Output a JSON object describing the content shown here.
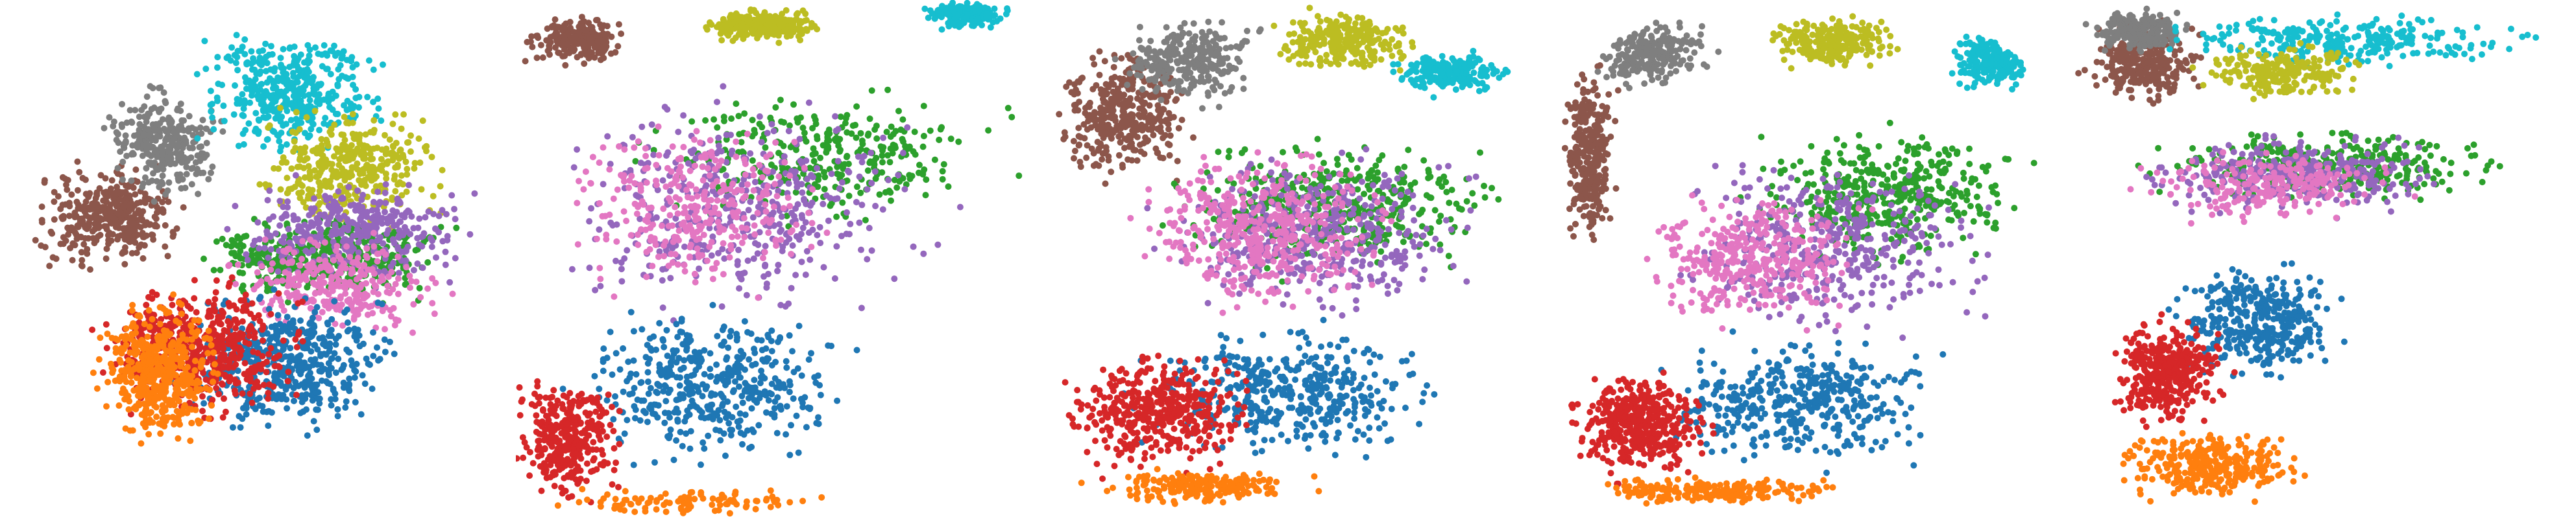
{
  "colors": {
    "blue": "#1f77b4",
    "orange": "#ff7f0e",
    "green": "#2ca02c",
    "red": "#d62728",
    "purple": "#9467bd",
    "brown": "#8c564b",
    "pink": "#e377c2",
    "gray": "#7f7f7f",
    "olive": "#bcbd22",
    "cyan": "#17becf"
  },
  "chart_data": [
    {
      "type": "scatter",
      "title": "",
      "xlabel": "",
      "ylabel": "",
      "axes_visible": false,
      "grid": false,
      "legend": "none",
      "shape": "disc",
      "series": [
        {
          "color": "#8c564b",
          "count": 380,
          "region": {
            "cx": 0.22,
            "cy": 0.42,
            "rx": 0.18,
            "ry": 0.12
          }
        },
        {
          "color": "#7f7f7f",
          "count": 300,
          "region": {
            "cx": 0.33,
            "cy": 0.28,
            "rx": 0.14,
            "ry": 0.13
          }
        },
        {
          "color": "#17becf",
          "count": 420,
          "region": {
            "cx": 0.58,
            "cy": 0.18,
            "rx": 0.22,
            "ry": 0.14
          }
        },
        {
          "color": "#bcbd22",
          "count": 360,
          "region": {
            "cx": 0.7,
            "cy": 0.32,
            "rx": 0.22,
            "ry": 0.14
          }
        },
        {
          "color": "#2ca02c",
          "count": 420,
          "region": {
            "cx": 0.65,
            "cy": 0.5,
            "rx": 0.3,
            "ry": 0.1
          }
        },
        {
          "color": "#9467bd",
          "count": 380,
          "region": {
            "cx": 0.7,
            "cy": 0.45,
            "rx": 0.28,
            "ry": 0.12
          }
        },
        {
          "color": "#e377c2",
          "count": 300,
          "region": {
            "cx": 0.68,
            "cy": 0.55,
            "rx": 0.26,
            "ry": 0.12
          }
        },
        {
          "color": "#1f77b4",
          "count": 480,
          "region": {
            "cx": 0.58,
            "cy": 0.7,
            "rx": 0.26,
            "ry": 0.16
          }
        },
        {
          "color": "#d62728",
          "count": 520,
          "region": {
            "cx": 0.4,
            "cy": 0.68,
            "rx": 0.25,
            "ry": 0.16
          }
        },
        {
          "color": "#ff7f0e",
          "count": 480,
          "region": {
            "cx": 0.32,
            "cy": 0.72,
            "rx": 0.14,
            "ry": 0.16
          }
        }
      ]
    },
    {
      "type": "scatter",
      "title": "",
      "xlabel": "",
      "ylabel": "",
      "axes_visible": false,
      "grid": false,
      "legend": "none",
      "shape": "rect",
      "series": [
        {
          "color": "#8c564b",
          "count": 200,
          "region": {
            "cx": 0.12,
            "cy": 0.08,
            "rx": 0.12,
            "ry": 0.06
          }
        },
        {
          "color": "#bcbd22",
          "count": 260,
          "region": {
            "cx": 0.48,
            "cy": 0.05,
            "rx": 0.14,
            "ry": 0.04
          }
        },
        {
          "color": "#17becf",
          "count": 160,
          "region": {
            "cx": 0.88,
            "cy": 0.03,
            "rx": 0.1,
            "ry": 0.03
          }
        },
        {
          "color": "#2ca02c",
          "count": 320,
          "region": {
            "cx": 0.6,
            "cy": 0.3,
            "rx": 0.4,
            "ry": 0.16
          }
        },
        {
          "color": "#9467bd",
          "count": 420,
          "region": {
            "cx": 0.45,
            "cy": 0.4,
            "rx": 0.45,
            "ry": 0.25
          }
        },
        {
          "color": "#e377c2",
          "count": 320,
          "region": {
            "cx": 0.35,
            "cy": 0.4,
            "rx": 0.3,
            "ry": 0.2
          }
        },
        {
          "color": "#1f77b4",
          "count": 440,
          "region": {
            "cx": 0.38,
            "cy": 0.75,
            "rx": 0.32,
            "ry": 0.18
          }
        },
        {
          "color": "#d62728",
          "count": 340,
          "region": {
            "cx": 0.1,
            "cy": 0.85,
            "rx": 0.12,
            "ry": 0.14
          }
        },
        {
          "color": "#ff7f0e",
          "count": 100,
          "region": {
            "cx": 0.35,
            "cy": 0.97,
            "rx": 0.35,
            "ry": 0.03
          }
        }
      ]
    },
    {
      "type": "scatter",
      "title": "",
      "xlabel": "",
      "ylabel": "",
      "axes_visible": false,
      "grid": false,
      "legend": "none",
      "shape": "disc",
      "series": [
        {
          "color": "#8c564b",
          "count": 360,
          "region": {
            "cx": 0.18,
            "cy": 0.22,
            "rx": 0.16,
            "ry": 0.16
          }
        },
        {
          "color": "#7f7f7f",
          "count": 300,
          "region": {
            "cx": 0.3,
            "cy": 0.12,
            "rx": 0.16,
            "ry": 0.1
          }
        },
        {
          "color": "#bcbd22",
          "count": 260,
          "region": {
            "cx": 0.6,
            "cy": 0.08,
            "rx": 0.16,
            "ry": 0.07
          }
        },
        {
          "color": "#17becf",
          "count": 200,
          "region": {
            "cx": 0.82,
            "cy": 0.14,
            "rx": 0.14,
            "ry": 0.05
          }
        },
        {
          "color": "#2ca02c",
          "count": 420,
          "region": {
            "cx": 0.6,
            "cy": 0.4,
            "rx": 0.38,
            "ry": 0.15
          }
        },
        {
          "color": "#9467bd",
          "count": 420,
          "region": {
            "cx": 0.55,
            "cy": 0.45,
            "rx": 0.38,
            "ry": 0.18
          }
        },
        {
          "color": "#e377c2",
          "count": 440,
          "region": {
            "cx": 0.45,
            "cy": 0.45,
            "rx": 0.3,
            "ry": 0.18
          }
        },
        {
          "color": "#1f77b4",
          "count": 420,
          "region": {
            "cx": 0.5,
            "cy": 0.76,
            "rx": 0.34,
            "ry": 0.15
          }
        },
        {
          "color": "#d62728",
          "count": 440,
          "region": {
            "cx": 0.25,
            "cy": 0.8,
            "rx": 0.22,
            "ry": 0.14
          }
        },
        {
          "color": "#ff7f0e",
          "count": 200,
          "region": {
            "cx": 0.32,
            "cy": 0.94,
            "rx": 0.25,
            "ry": 0.04
          }
        }
      ]
    },
    {
      "type": "scatter",
      "title": "",
      "xlabel": "",
      "ylabel": "",
      "axes_visible": false,
      "grid": false,
      "legend": "none",
      "shape": "disc",
      "series": [
        {
          "color": "#8c564b",
          "count": 300,
          "region": {
            "cx": 0.08,
            "cy": 0.3,
            "rx": 0.06,
            "ry": 0.22
          }
        },
        {
          "color": "#7f7f7f",
          "count": 220,
          "region": {
            "cx": 0.2,
            "cy": 0.1,
            "rx": 0.14,
            "ry": 0.08
          }
        },
        {
          "color": "#bcbd22",
          "count": 240,
          "region": {
            "cx": 0.55,
            "cy": 0.08,
            "rx": 0.15,
            "ry": 0.06
          }
        },
        {
          "color": "#17becf",
          "count": 200,
          "region": {
            "cx": 0.86,
            "cy": 0.12,
            "rx": 0.1,
            "ry": 0.06
          }
        },
        {
          "color": "#2ca02c",
          "count": 420,
          "region": {
            "cx": 0.66,
            "cy": 0.38,
            "rx": 0.32,
            "ry": 0.16
          }
        },
        {
          "color": "#9467bd",
          "count": 400,
          "region": {
            "cx": 0.55,
            "cy": 0.48,
            "rx": 0.36,
            "ry": 0.2
          }
        },
        {
          "color": "#e377c2",
          "count": 360,
          "region": {
            "cx": 0.4,
            "cy": 0.5,
            "rx": 0.26,
            "ry": 0.16
          }
        },
        {
          "color": "#1f77b4",
          "count": 420,
          "region": {
            "cx": 0.48,
            "cy": 0.78,
            "rx": 0.32,
            "ry": 0.15
          }
        },
        {
          "color": "#d62728",
          "count": 440,
          "region": {
            "cx": 0.18,
            "cy": 0.82,
            "rx": 0.16,
            "ry": 0.12
          }
        },
        {
          "color": "#ff7f0e",
          "count": 200,
          "region": {
            "cx": 0.32,
            "cy": 0.95,
            "rx": 0.3,
            "ry": 0.03
          }
        }
      ]
    },
    {
      "type": "scatter",
      "title": "",
      "xlabel": "",
      "ylabel": "",
      "axes_visible": false,
      "grid": false,
      "legend": "none",
      "shape": "disc",
      "series": [
        {
          "color": "#8c564b",
          "count": 300,
          "region": {
            "cx": 0.15,
            "cy": 0.12,
            "rx": 0.14,
            "ry": 0.09
          }
        },
        {
          "color": "#7f7f7f",
          "count": 200,
          "region": {
            "cx": 0.14,
            "cy": 0.06,
            "rx": 0.12,
            "ry": 0.05
          }
        },
        {
          "color": "#17becf",
          "count": 280,
          "region": {
            "cx": 0.55,
            "cy": 0.08,
            "rx": 0.45,
            "ry": 0.06
          }
        },
        {
          "color": "#bcbd22",
          "count": 220,
          "region": {
            "cx": 0.42,
            "cy": 0.14,
            "rx": 0.2,
            "ry": 0.06
          }
        },
        {
          "color": "#2ca02c",
          "count": 340,
          "region": {
            "cx": 0.52,
            "cy": 0.32,
            "rx": 0.4,
            "ry": 0.08
          }
        },
        {
          "color": "#9467bd",
          "count": 320,
          "region": {
            "cx": 0.45,
            "cy": 0.34,
            "rx": 0.36,
            "ry": 0.1
          }
        },
        {
          "color": "#e377c2",
          "count": 220,
          "region": {
            "cx": 0.4,
            "cy": 0.36,
            "rx": 0.3,
            "ry": 0.08
          }
        },
        {
          "color": "#1f77b4",
          "count": 360,
          "region": {
            "cx": 0.38,
            "cy": 0.62,
            "rx": 0.2,
            "ry": 0.14
          }
        },
        {
          "color": "#d62728",
          "count": 360,
          "region": {
            "cx": 0.2,
            "cy": 0.72,
            "rx": 0.14,
            "ry": 0.12
          }
        },
        {
          "color": "#ff7f0e",
          "count": 300,
          "region": {
            "cx": 0.28,
            "cy": 0.9,
            "rx": 0.22,
            "ry": 0.08
          }
        }
      ]
    }
  ]
}
